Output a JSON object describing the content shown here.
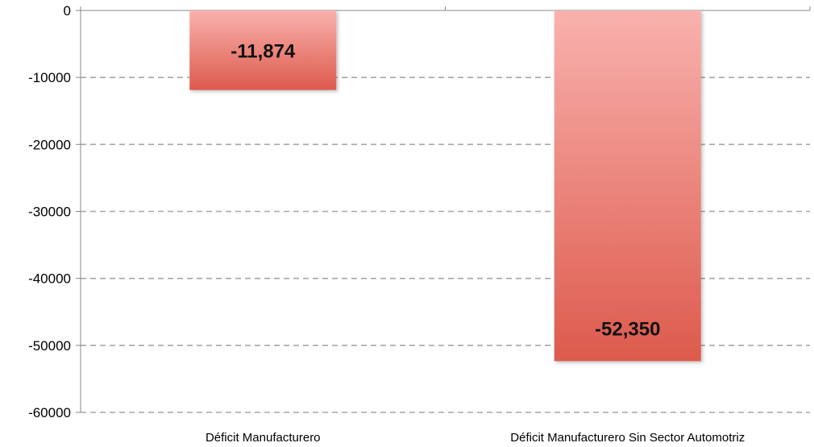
{
  "chart_data": {
    "type": "bar",
    "title": "",
    "xlabel": "",
    "ylabel": "",
    "categories": [
      "Déficit Manufacturero",
      "Déficit Manufacturero Sin Sector Automotriz"
    ],
    "values": [
      -11874,
      -52350
    ],
    "data_labels": [
      "-11,874",
      "-52,350"
    ],
    "ylim": [
      -60000,
      0
    ],
    "yticks": [
      0,
      -10000,
      -20000,
      -30000,
      -40000,
      -50000,
      -60000
    ],
    "ytick_labels": [
      "0",
      "-10000",
      "-20000",
      "-30000",
      "-40000",
      "-50000",
      "-60000"
    ],
    "grid": "horizontal-dashed",
    "legend": "none",
    "colors": {
      "bar_top": "#f9b1ad",
      "bar_bottom": "#dd5a4c",
      "grid": "#a6a6a6",
      "axis": "#888888"
    }
  }
}
